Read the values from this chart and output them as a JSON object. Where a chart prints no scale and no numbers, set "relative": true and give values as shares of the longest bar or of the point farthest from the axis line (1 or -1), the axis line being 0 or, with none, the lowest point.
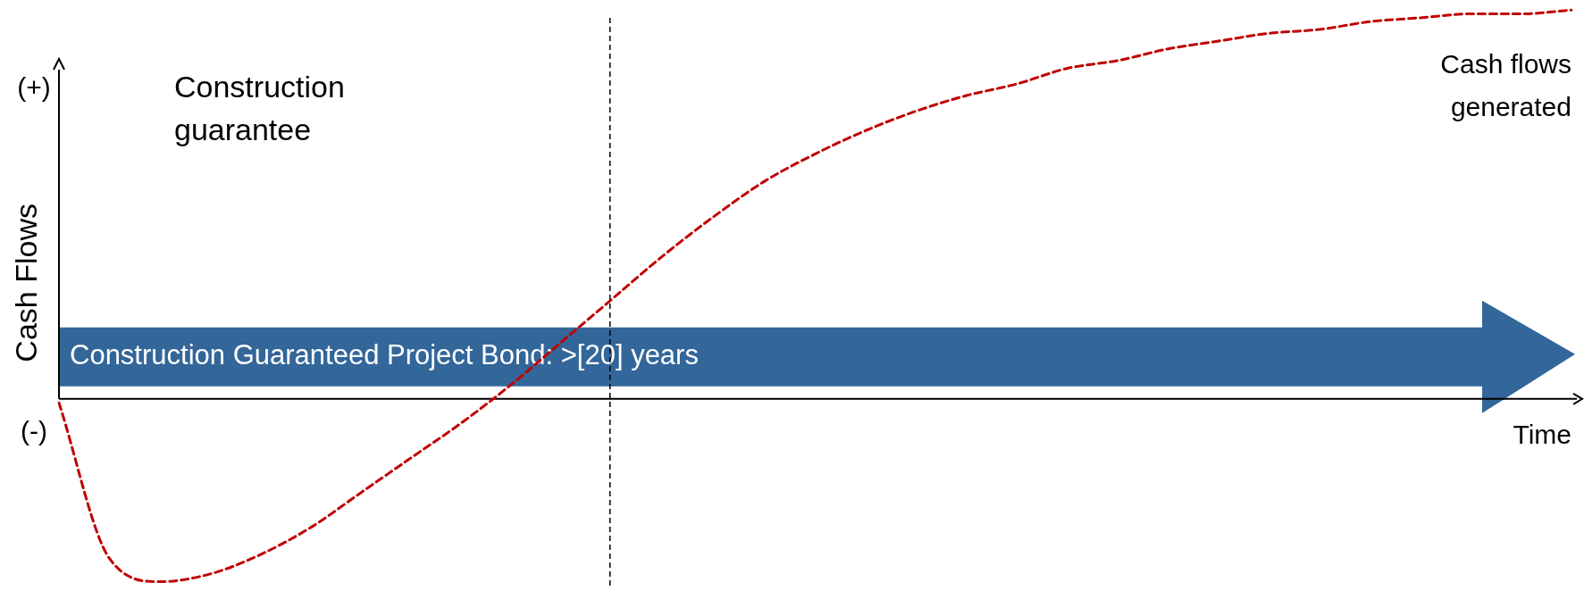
{
  "chart_data": {
    "type": "line",
    "relative": true,
    "ylabel": "Cash Flows",
    "xlabel": "Time",
    "categories": [
      null,
      null,
      null,
      null,
      null,
      null,
      null,
      null,
      null,
      null,
      null,
      null,
      null,
      null,
      null,
      null,
      null,
      null,
      null,
      null,
      null,
      null,
      null,
      null,
      null,
      null,
      null,
      null,
      null,
      null,
      null
    ],
    "series": [
      {
        "color": "#c00000",
        "values": [
          -0.01,
          -0.41,
          -0.47,
          -0.45,
          -0.4,
          -0.33,
          -0.24,
          -0.15,
          -0.06,
          0.04,
          0.15,
          0.26,
          0.37,
          0.47,
          0.56,
          0.63,
          0.69,
          0.74,
          0.78,
          0.81,
          0.85,
          0.87,
          0.9,
          0.92,
          0.94,
          0.95,
          0.97,
          0.98,
          0.99,
          0.99,
          1
        ]
      }
    ],
    "line_style": "dashed",
    "marker": "none",
    "legend": false,
    "tick_labels": false,
    "annotations": [
      "(+)",
      "(-)",
      "Construction guarantee",
      "Cash flows generated",
      "Construction Guaranteed Project Bond: >[20] years"
    ]
  }
}
